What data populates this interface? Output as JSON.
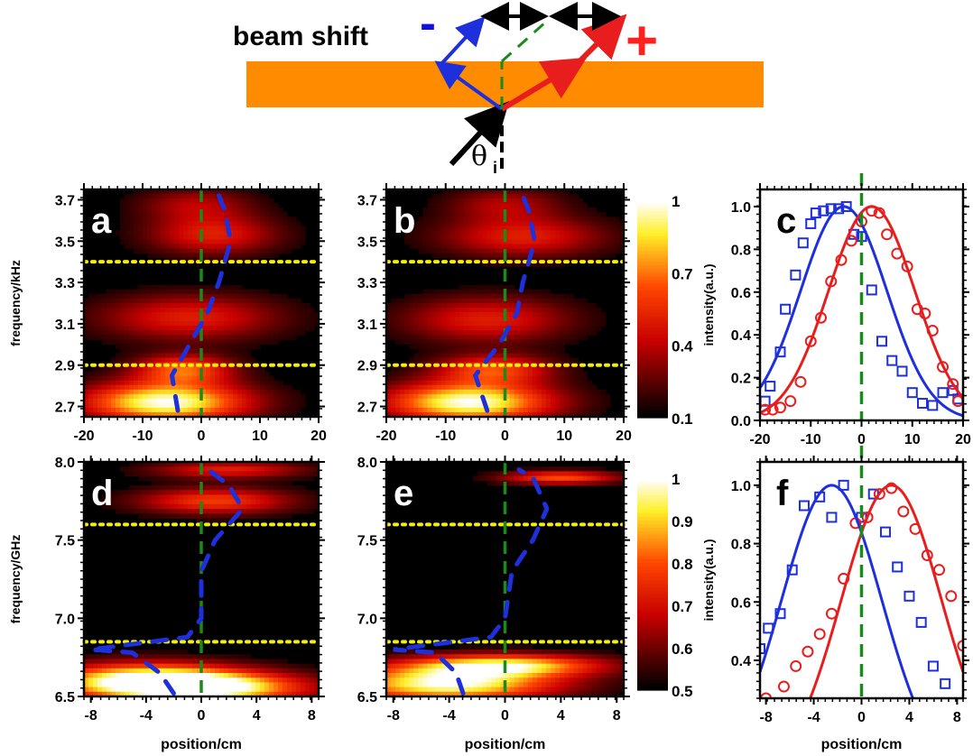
{
  "schematic": {
    "title": "beam shift",
    "minus_sign": "-",
    "plus_sign": "+",
    "angle_symbol": "θ",
    "angle_subscript": "i",
    "slab_color": "#ff8c00",
    "minus_color": "#1010e0",
    "plus_color": "#ff2020"
  },
  "colors": {
    "blue": "#1e2fdc",
    "red": "#e81e1e",
    "green": "#1a8a1a",
    "yellow": "#f5f000"
  },
  "chart_data": [
    {
      "id": "a",
      "type": "heatmap",
      "panel_label": "a",
      "ylabel": "frequency/kHz",
      "xlim": [
        -20,
        20
      ],
      "ylim": [
        2.65,
        3.75
      ],
      "xticks": [
        "-20",
        "-10",
        "0",
        "10",
        "20"
      ],
      "yticks": [
        "2.7",
        "2.9",
        "3.1",
        "3.3",
        "3.5",
        "3.7"
      ],
      "dotted_lines_y": [
        2.9,
        3.4
      ],
      "center_line_x": 0,
      "blue_dash": [
        [
          -4,
          2.68
        ],
        [
          -5,
          2.85
        ],
        [
          -2,
          3.0
        ],
        [
          1,
          3.15
        ],
        [
          3,
          3.3
        ],
        [
          5,
          3.5
        ],
        [
          4,
          3.65
        ],
        [
          3,
          3.72
        ]
      ],
      "blobs": [
        {
          "x": -6,
          "y": 2.72,
          "sx": 10,
          "sy": 0.07,
          "amp": 1.0
        },
        {
          "x": -3,
          "y": 2.88,
          "sx": 6,
          "sy": 0.05,
          "amp": 0.6
        },
        {
          "x": -2,
          "y": 3.13,
          "sx": 11,
          "sy": 0.08,
          "amp": 0.45
        },
        {
          "x": 2,
          "y": 3.53,
          "sx": 8,
          "sy": 0.07,
          "amp": 0.45
        },
        {
          "x": -1,
          "y": 3.68,
          "sx": 7,
          "sy": 0.06,
          "amp": 0.3
        }
      ]
    },
    {
      "id": "b",
      "type": "heatmap",
      "panel_label": "b",
      "xlim": [
        -20,
        20
      ],
      "ylim": [
        2.65,
        3.75
      ],
      "xticks": [
        "-20",
        "-10",
        "0",
        "10",
        "20"
      ],
      "yticks": [
        "2.7",
        "2.9",
        "3.1",
        "3.3",
        "3.5",
        "3.7"
      ],
      "dotted_lines_y": [
        2.9,
        3.4
      ],
      "center_line_x": 0,
      "blue_dash": [
        [
          -3,
          2.68
        ],
        [
          -5,
          2.85
        ],
        [
          -1,
          3.0
        ],
        [
          2,
          3.15
        ],
        [
          3,
          3.3
        ],
        [
          5,
          3.5
        ],
        [
          4,
          3.65
        ],
        [
          3,
          3.72
        ]
      ],
      "blobs": [
        {
          "x": -6,
          "y": 2.72,
          "sx": 10,
          "sy": 0.07,
          "amp": 1.0
        },
        {
          "x": -2,
          "y": 2.88,
          "sx": 7,
          "sy": 0.05,
          "amp": 0.55
        },
        {
          "x": -3,
          "y": 3.12,
          "sx": 10,
          "sy": 0.08,
          "amp": 0.45
        },
        {
          "x": 3,
          "y": 3.52,
          "sx": 10,
          "sy": 0.07,
          "amp": 0.45
        },
        {
          "x": 0,
          "y": 3.68,
          "sx": 7,
          "sy": 0.06,
          "amp": 0.3
        }
      ]
    },
    {
      "id": "cb1",
      "type": "colorbar",
      "ticks": [
        "1",
        "0.7",
        "0.4",
        "0.1"
      ],
      "tick_values": [
        1,
        0.7,
        0.4,
        0.1
      ],
      "range": [
        0.1,
        1
      ]
    },
    {
      "id": "c",
      "type": "scatter",
      "panel_label": "c",
      "ylabel": "intensity(a.u.)",
      "xlim": [
        -20,
        20
      ],
      "ylim": [
        0,
        1.08
      ],
      "xticks": [
        "-20",
        "-10",
        "0",
        "10",
        "20"
      ],
      "yticks": [
        "0.0",
        "0.2",
        "0.4",
        "0.6",
        "0.8",
        "1.0"
      ],
      "series": [
        {
          "marker": "square",
          "color": "blue",
          "x": [
            -19,
            -18,
            -16,
            -15,
            -13,
            -11.5,
            -10,
            -9,
            -7.5,
            -6,
            -4.5,
            -3,
            -1.5,
            0,
            2,
            4,
            6,
            8,
            10,
            12,
            14,
            16,
            18,
            19
          ],
          "y": [
            0.09,
            0.16,
            0.32,
            0.52,
            0.68,
            0.83,
            0.92,
            0.97,
            0.98,
            0.99,
            0.99,
            1.0,
            0.87,
            0.86,
            0.61,
            0.37,
            0.28,
            0.23,
            0.13,
            0.08,
            0.07,
            0.13,
            0.14,
            0.1
          ]
        },
        {
          "marker": "circle",
          "color": "red",
          "x": [
            -19,
            -17.5,
            -16,
            -14,
            -12,
            -10,
            -8,
            -6,
            -4,
            -2,
            0,
            2,
            3.5,
            5,
            7,
            9,
            11,
            12.5,
            14,
            16,
            18,
            19
          ],
          "y": [
            0.05,
            0.05,
            0.06,
            0.09,
            0.18,
            0.37,
            0.48,
            0.65,
            0.75,
            0.84,
            0.93,
            0.98,
            0.97,
            0.87,
            0.78,
            0.72,
            0.52,
            0.5,
            0.42,
            0.25,
            0.17,
            0.09
          ]
        },
        {
          "marker": "line",
          "color": "blue",
          "curve": "gauss",
          "center": -3.5,
          "width": 8.5,
          "amp": 1.0
        },
        {
          "marker": "line",
          "color": "red",
          "curve": "gauss",
          "center": 2.0,
          "width": 8.5,
          "amp": 1.0
        }
      ],
      "center_line_x": 0
    },
    {
      "id": "d",
      "type": "heatmap",
      "panel_label": "d",
      "ylabel": "frequency/GHz",
      "xlim": [
        -8.5,
        8.5
      ],
      "ylim": [
        6.5,
        8.0
      ],
      "xticks": [
        "-8",
        "-4",
        "0",
        "4",
        "8"
      ],
      "yticks": [
        "6.5",
        "7.0",
        "7.5",
        "8.0"
      ],
      "dotted_lines_y": [
        6.85,
        7.6
      ],
      "center_line_x": 0,
      "blue_dash": [
        [
          -2,
          6.52
        ],
        [
          -3,
          6.65
        ],
        [
          -5,
          6.78
        ],
        [
          -8,
          6.8
        ],
        [
          -1,
          6.88
        ],
        [
          0,
          7.0
        ],
        [
          0,
          7.3
        ],
        [
          1,
          7.5
        ],
        [
          3,
          7.7
        ],
        [
          2,
          7.85
        ],
        [
          0.5,
          7.95
        ]
      ],
      "blobs": [
        {
          "x": -4,
          "y": 6.6,
          "sx": 5,
          "sy": 0.08,
          "amp": 1.0
        },
        {
          "x": 1,
          "y": 6.55,
          "sx": 5,
          "sy": 0.07,
          "amp": 0.8
        },
        {
          "x": 1,
          "y": 7.75,
          "sx": 4,
          "sy": 0.06,
          "amp": 0.55
        },
        {
          "x": 2,
          "y": 7.95,
          "sx": 4,
          "sy": 0.04,
          "amp": 0.45
        }
      ]
    },
    {
      "id": "e",
      "type": "heatmap",
      "panel_label": "e",
      "xlim": [
        -8.5,
        8.5
      ],
      "ylim": [
        6.5,
        8.0
      ],
      "xticks": [
        "-8",
        "-4",
        "0",
        "4",
        "8"
      ],
      "yticks": [
        "6.5",
        "7.0",
        "7.5",
        "8.0"
      ],
      "dotted_lines_y": [
        6.85,
        7.6
      ],
      "center_line_x": 0,
      "blue_dash": [
        [
          -3,
          6.52
        ],
        [
          -3.5,
          6.65
        ],
        [
          -5,
          6.78
        ],
        [
          -8,
          6.8
        ],
        [
          -1,
          6.88
        ],
        [
          0,
          7.0
        ],
        [
          0.5,
          7.3
        ],
        [
          2,
          7.5
        ],
        [
          3,
          7.7
        ],
        [
          2,
          7.9
        ],
        [
          1,
          7.95
        ]
      ],
      "blobs": [
        {
          "x": -4,
          "y": 6.58,
          "sx": 5.5,
          "sy": 0.08,
          "amp": 1.0
        },
        {
          "x": 0,
          "y": 6.7,
          "sx": 5,
          "sy": 0.05,
          "amp": 0.8
        },
        {
          "x": 4,
          "y": 7.9,
          "sx": 3,
          "sy": 0.03,
          "amp": 0.6
        }
      ]
    },
    {
      "id": "cb2",
      "type": "colorbar",
      "ticks": [
        "1",
        "0.9",
        "0.8",
        "0.7",
        "0.6",
        "0.5"
      ],
      "tick_values": [
        1,
        0.9,
        0.8,
        0.7,
        0.6,
        0.5
      ],
      "range": [
        0.5,
        1
      ]
    },
    {
      "id": "f",
      "type": "scatter",
      "panel_label": "f",
      "ylabel": "intensity(a.u.)",
      "xlabel": "position/cm",
      "xlim": [
        -8.5,
        8.5
      ],
      "ylim": [
        0.27,
        1.08
      ],
      "xticks": [
        "-8",
        "-4",
        "0",
        "4",
        "8"
      ],
      "yticks": [
        "0.4",
        "0.6",
        "0.8",
        "1.0"
      ],
      "series": [
        {
          "marker": "square",
          "color": "blue",
          "x": [
            -8.5,
            -7.8,
            -6.8,
            -5.8,
            -4.8,
            -3.5,
            -2.5,
            -1.5,
            0,
            1,
            2,
            3,
            4,
            5,
            6,
            7
          ],
          "y": [
            0.44,
            0.51,
            0.56,
            0.71,
            0.93,
            0.96,
            0.89,
            1.0,
            0.89,
            0.97,
            0.84,
            0.72,
            0.62,
            0.53,
            0.38,
            0.32
          ]
        },
        {
          "marker": "circle",
          "color": "red",
          "x": [
            -8,
            -6.5,
            -5.5,
            -4.5,
            -3.5,
            -2.5,
            -1.5,
            -0.5,
            0.5,
            1.5,
            2.5,
            3.5,
            4.5,
            5.5,
            6.5,
            7.5,
            8.5
          ],
          "y": [
            0.27,
            0.31,
            0.38,
            0.43,
            0.49,
            0.56,
            0.68,
            0.87,
            0.89,
            0.97,
            0.99,
            0.91,
            0.85,
            0.76,
            0.71,
            0.62,
            0.45
          ]
        },
        {
          "marker": "line",
          "color": "blue",
          "curve": "gauss",
          "center": -2.5,
          "width": 4.2,
          "amp": 1.0
        },
        {
          "marker": "line",
          "color": "red",
          "curve": "gauss",
          "center": 2.5,
          "width": 4.2,
          "amp": 1.0
        }
      ],
      "center_line_x": 0
    }
  ],
  "axis_labels": {
    "x_bottom": "position/cm"
  }
}
